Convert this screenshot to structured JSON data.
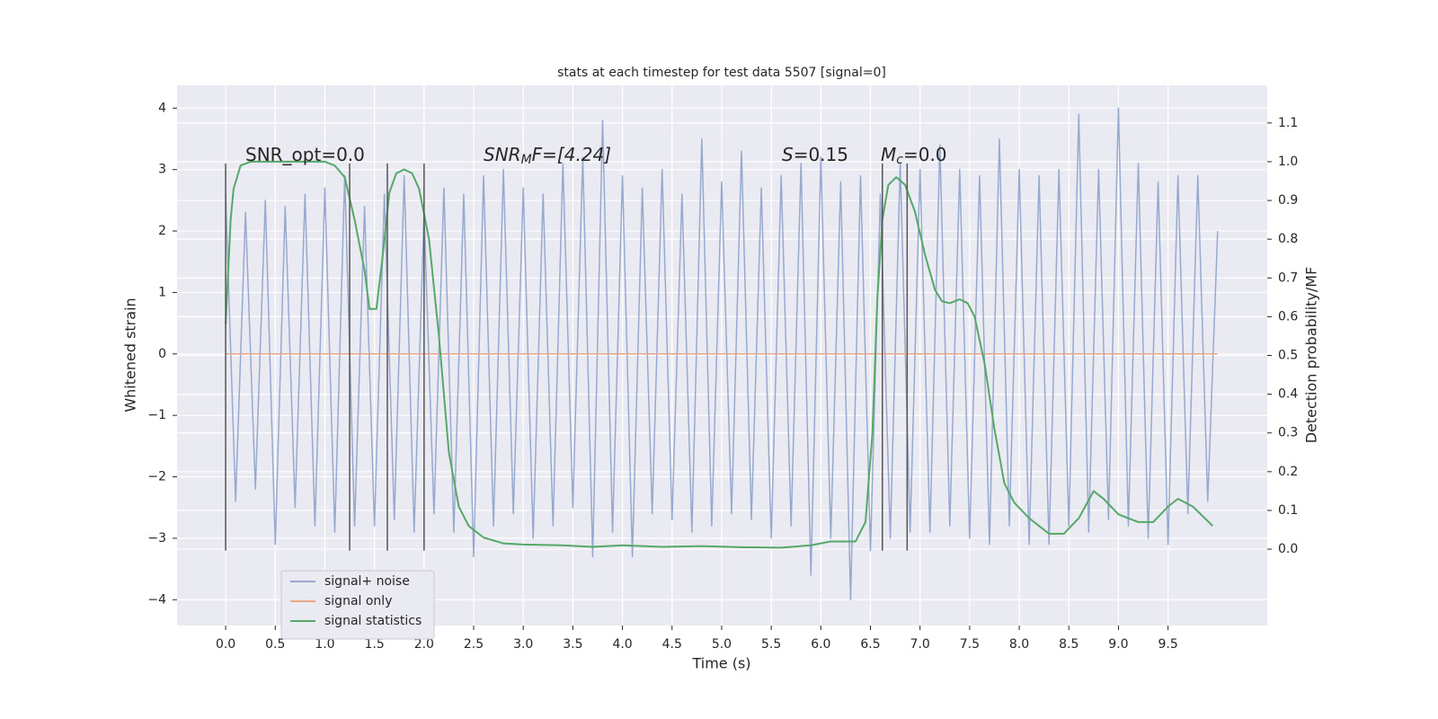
{
  "chart_data": {
    "type": "line",
    "title": "stats at each timestep for test data 5507 [signal=0]",
    "xlabel": "Time (s)",
    "ylabel": "Whitened strain",
    "y2label": "Detection probability/MF",
    "xlim": [
      -0.49,
      10.5
    ],
    "ylim": [
      -4.42,
      4.37
    ],
    "y2lim": [
      -0.197,
      1.197
    ],
    "xticks": [
      {
        "value": 0,
        "label": "0.0"
      },
      {
        "value": 0.5,
        "label": "0.5"
      },
      {
        "value": 1,
        "label": "1.0"
      },
      {
        "value": 1.5,
        "label": "1.5"
      },
      {
        "value": 2,
        "label": "2.0"
      },
      {
        "value": 2.5,
        "label": "2.5"
      },
      {
        "value": 3,
        "label": "3.0"
      },
      {
        "value": 3.5,
        "label": "3.5"
      },
      {
        "value": 4,
        "label": "4.0"
      },
      {
        "value": 4.5,
        "label": "4.5"
      },
      {
        "value": 5,
        "label": "5.0"
      },
      {
        "value": 5.5,
        "label": "5.5"
      },
      {
        "value": 6,
        "label": "6.0"
      },
      {
        "value": 6.5,
        "label": "6.5"
      },
      {
        "value": 7,
        "label": "7.0"
      },
      {
        "value": 7.5,
        "label": "7.5"
      },
      {
        "value": 8,
        "label": "8.0"
      },
      {
        "value": 8.5,
        "label": "8.5"
      },
      {
        "value": 9,
        "label": "9.0"
      },
      {
        "value": 9.5,
        "label": "9.5"
      }
    ],
    "yticks": [
      {
        "value": -4,
        "label": "−4"
      },
      {
        "value": -3,
        "label": "−3"
      },
      {
        "value": -2,
        "label": "−2"
      },
      {
        "value": -1,
        "label": "−1"
      },
      0,
      1,
      2,
      3,
      4
    ],
    "y2ticks": [
      {
        "value": 0,
        "label": "0.0"
      },
      {
        "value": 0.1,
        "label": "0.1"
      },
      {
        "value": 0.2,
        "label": "0.2"
      },
      {
        "value": 0.3,
        "label": "0.3"
      },
      {
        "value": 0.4,
        "label": "0.4"
      },
      {
        "value": 0.5,
        "label": "0.5"
      },
      {
        "value": 0.6,
        "label": "0.6"
      },
      {
        "value": 0.7,
        "label": "0.7"
      },
      {
        "value": 0.8,
        "label": "0.8"
      },
      {
        "value": 0.9,
        "label": "0.9"
      },
      {
        "value": 1,
        "label": "1.0"
      },
      {
        "value": 1.1,
        "label": "1.1"
      }
    ],
    "grid": true,
    "legend": "lower left",
    "series": [
      {
        "name": "signal+ noise",
        "color": "#98a9d0",
        "x": [
          0,
          0.1,
          0.2,
          0.3,
          0.4,
          0.5,
          0.6,
          0.7,
          0.8,
          0.9,
          1,
          1.1,
          1.2,
          1.3,
          1.4,
          1.5,
          1.6,
          1.7,
          1.8,
          1.9,
          2,
          2.1,
          2.2,
          2.3,
          2.4,
          2.5,
          2.6,
          2.7,
          2.8,
          2.9,
          3,
          3.1,
          3.2,
          3.3,
          3.4,
          3.5,
          3.6,
          3.7,
          3.8,
          3.9,
          4,
          4.1,
          4.2,
          4.3,
          4.4,
          4.5,
          4.6,
          4.7,
          4.8,
          4.9,
          5,
          5.1,
          5.2,
          5.3,
          5.4,
          5.5,
          5.6,
          5.7,
          5.8,
          5.9,
          6,
          6.1,
          6.2,
          6.3,
          6.4,
          6.5,
          6.6,
          6.7,
          6.8,
          6.9,
          7,
          7.1,
          7.2,
          7.3,
          7.4,
          7.5,
          7.6,
          7.7,
          7.8,
          7.9,
          8,
          8.1,
          8.2,
          8.3,
          8.4,
          8.5,
          8.6,
          8.7,
          8.8,
          8.9,
          9,
          9.1,
          9.2,
          9.3,
          9.4,
          9.5,
          9.6,
          9.7,
          9.8,
          9.9,
          10
        ],
        "values": [
          2.6,
          -2.4,
          2.3,
          -2.2,
          2.5,
          -3.1,
          2.4,
          -2.5,
          2.6,
          -2.8,
          2.7,
          -2.9,
          2.9,
          -2.8,
          2.4,
          -2.8,
          2.6,
          -2.7,
          2.9,
          -2.9,
          2.3,
          -2.6,
          2.7,
          -2.9,
          2.6,
          -3.3,
          2.9,
          -2.8,
          3.0,
          -2.6,
          2.7,
          -3.0,
          2.6,
          -2.8,
          3.1,
          -2.5,
          3.2,
          -3.3,
          3.8,
          -2.9,
          2.9,
          -3.3,
          2.7,
          -2.6,
          3.0,
          -2.7,
          2.6,
          -2.9,
          3.5,
          -2.8,
          2.8,
          -2.6,
          3.3,
          -2.7,
          2.7,
          -3.0,
          2.9,
          -2.8,
          3.1,
          -3.6,
          3.2,
          -3.0,
          2.8,
          -4.0,
          2.9,
          -3.2,
          2.6,
          -3.0,
          3.1,
          -2.9,
          3.0,
          -2.9,
          3.4,
          -2.8,
          3.0,
          -3.0,
          2.9,
          -3.1,
          3.5,
          -2.8,
          3.0,
          -3.1,
          2.9,
          -3.1,
          3.0,
          -2.8,
          3.9,
          -2.9,
          3.0,
          -2.7,
          4.0,
          -2.8,
          3.1,
          -3.0,
          2.8,
          -3.1,
          2.9,
          -2.6,
          2.9,
          -2.4,
          2.0
        ]
      },
      {
        "name": "signal only",
        "color": "#e8a88a",
        "x": [
          0,
          10
        ],
        "values": [
          0,
          0
        ]
      },
      {
        "name": "signal statistics",
        "color": "#55a868",
        "axis": "y2",
        "x": [
          0,
          0.05,
          0.08,
          0.15,
          0.25,
          0.5,
          0.8,
          1,
          1.1,
          1.2,
          1.3,
          1.4,
          1.45,
          1.52,
          1.58,
          1.65,
          1.72,
          1.8,
          1.88,
          1.95,
          2.05,
          2.15,
          2.25,
          2.35,
          2.45,
          2.6,
          2.8,
          3,
          3.4,
          3.7,
          4,
          4.4,
          4.8,
          5.2,
          5.6,
          5.9,
          6.1,
          6.25,
          6.35,
          6.45,
          6.52,
          6.57,
          6.62,
          6.68,
          6.76,
          6.85,
          6.95,
          7.05,
          7.15,
          7.22,
          7.3,
          7.4,
          7.48,
          7.55,
          7.65,
          7.75,
          7.85,
          7.95,
          8.1,
          8.3,
          8.45,
          8.6,
          8.75,
          8.85,
          9,
          9.2,
          9.35,
          9.5,
          9.6,
          9.75,
          9.95
        ],
        "values": [
          0.58,
          0.85,
          0.93,
          0.99,
          1,
          1,
          1,
          1,
          0.99,
          0.96,
          0.85,
          0.72,
          0.62,
          0.62,
          0.75,
          0.92,
          0.97,
          0.98,
          0.97,
          0.93,
          0.8,
          0.55,
          0.25,
          0.11,
          0.06,
          0.03,
          0.015,
          0.012,
          0.01,
          0.006,
          0.01,
          0.006,
          0.008,
          0.005,
          0.004,
          0.01,
          0.02,
          0.02,
          0.02,
          0.07,
          0.3,
          0.65,
          0.85,
          0.94,
          0.96,
          0.94,
          0.87,
          0.76,
          0.67,
          0.64,
          0.635,
          0.645,
          0.635,
          0.6,
          0.48,
          0.31,
          0.17,
          0.12,
          0.08,
          0.04,
          0.04,
          0.08,
          0.15,
          0.13,
          0.09,
          0.07,
          0.07,
          0.11,
          0.13,
          0.11,
          0.06
        ]
      }
    ],
    "vlines": [
      0,
      1.25,
      1.63,
      2,
      6.62,
      6.87
    ],
    "vline_range": [
      -3.2,
      3.1
    ],
    "annotations": [
      {
        "text": "SNR_opt=0.0"
      },
      {
        "label": "SNR",
        "subscript": "M",
        "text": "F=[4.24]"
      },
      {
        "label": "S",
        "text": "=0.15"
      },
      {
        "label": "M",
        "subscript": "c",
        "text": "=0.0"
      }
    ]
  }
}
